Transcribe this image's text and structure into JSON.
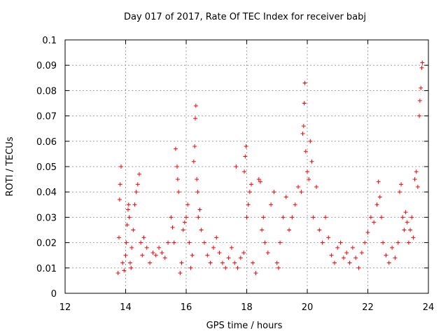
{
  "chart_data": {
    "type": "scatter",
    "title": "Day 017 of 2017, Rate Of TEC Index for receiver babj",
    "xlabel": "GPS time / hours",
    "ylabel": "ROTI / TECUs",
    "xlim": [
      12,
      24
    ],
    "ylim": [
      0,
      0.1
    ],
    "x_ticks": [
      "12",
      "14",
      "16",
      "18",
      "20",
      "22",
      "24"
    ],
    "y_ticks": [
      "0",
      "0.01",
      "0.02",
      "0.03",
      "0.04",
      "0.05",
      "0.06",
      "0.07",
      "0.08",
      "0.09",
      "0.1"
    ],
    "grid": true,
    "marker": "+",
    "color": "#ff0000",
    "points": [
      [
        13.75,
        0.008
      ],
      [
        13.78,
        0.022
      ],
      [
        13.8,
        0.037
      ],
      [
        13.82,
        0.043
      ],
      [
        13.85,
        0.05
      ],
      [
        13.9,
        0.012
      ],
      [
        13.95,
        0.009
      ],
      [
        14.0,
        0.015
      ],
      [
        14.02,
        0.02
      ],
      [
        14.05,
        0.027
      ],
      [
        14.08,
        0.033
      ],
      [
        14.1,
        0.035
      ],
      [
        14.12,
        0.03
      ],
      [
        14.15,
        0.012
      ],
      [
        14.18,
        0.01
      ],
      [
        14.2,
        0.018
      ],
      [
        14.25,
        0.025
      ],
      [
        14.3,
        0.035
      ],
      [
        14.35,
        0.04
      ],
      [
        14.4,
        0.043
      ],
      [
        14.45,
        0.047
      ],
      [
        14.5,
        0.02
      ],
      [
        14.55,
        0.015
      ],
      [
        14.6,
        0.022
      ],
      [
        14.7,
        0.018
      ],
      [
        14.8,
        0.012
      ],
      [
        14.9,
        0.016
      ],
      [
        15.0,
        0.015
      ],
      [
        15.1,
        0.018
      ],
      [
        15.2,
        0.016
      ],
      [
        15.3,
        0.014
      ],
      [
        15.4,
        0.02
      ],
      [
        15.5,
        0.03
      ],
      [
        15.55,
        0.026
      ],
      [
        15.6,
        0.02
      ],
      [
        15.65,
        0.057
      ],
      [
        15.7,
        0.05
      ],
      [
        15.72,
        0.045
      ],
      [
        15.75,
        0.04
      ],
      [
        15.8,
        0.008
      ],
      [
        15.85,
        0.012
      ],
      [
        15.9,
        0.025
      ],
      [
        15.95,
        0.028
      ],
      [
        16.0,
        0.03
      ],
      [
        16.05,
        0.035
      ],
      [
        16.1,
        0.02
      ],
      [
        16.15,
        0.01
      ],
      [
        16.2,
        0.015
      ],
      [
        16.25,
        0.052
      ],
      [
        16.28,
        0.058
      ],
      [
        16.3,
        0.069
      ],
      [
        16.32,
        0.074
      ],
      [
        16.35,
        0.045
      ],
      [
        16.38,
        0.04
      ],
      [
        16.4,
        0.03
      ],
      [
        16.45,
        0.033
      ],
      [
        16.5,
        0.025
      ],
      [
        16.6,
        0.02
      ],
      [
        16.7,
        0.015
      ],
      [
        16.8,
        0.012
      ],
      [
        16.9,
        0.018
      ],
      [
        17.0,
        0.022
      ],
      [
        17.1,
        0.016
      ],
      [
        17.2,
        0.012
      ],
      [
        17.3,
        0.01
      ],
      [
        17.4,
        0.014
      ],
      [
        17.5,
        0.018
      ],
      [
        17.6,
        0.012
      ],
      [
        17.65,
        0.05
      ],
      [
        17.7,
        0.01
      ],
      [
        17.8,
        0.014
      ],
      [
        17.9,
        0.016
      ],
      [
        17.92,
        0.048
      ],
      [
        17.95,
        0.054
      ],
      [
        17.98,
        0.058
      ],
      [
        18.0,
        0.03
      ],
      [
        18.05,
        0.035
      ],
      [
        18.1,
        0.04
      ],
      [
        18.15,
        0.043
      ],
      [
        18.2,
        0.012
      ],
      [
        18.3,
        0.008
      ],
      [
        18.4,
        0.045
      ],
      [
        18.45,
        0.044
      ],
      [
        18.5,
        0.025
      ],
      [
        18.55,
        0.03
      ],
      [
        18.6,
        0.02
      ],
      [
        18.7,
        0.016
      ],
      [
        18.8,
        0.035
      ],
      [
        18.9,
        0.04
      ],
      [
        19.0,
        0.012
      ],
      [
        19.05,
        0.01
      ],
      [
        19.1,
        0.02
      ],
      [
        19.2,
        0.03
      ],
      [
        19.3,
        0.038
      ],
      [
        19.4,
        0.025
      ],
      [
        19.5,
        0.03
      ],
      [
        19.6,
        0.035
      ],
      [
        19.7,
        0.042
      ],
      [
        19.8,
        0.04
      ],
      [
        19.85,
        0.063
      ],
      [
        19.88,
        0.066
      ],
      [
        19.9,
        0.075
      ],
      [
        19.92,
        0.083
      ],
      [
        19.95,
        0.056
      ],
      [
        20.0,
        0.048
      ],
      [
        20.05,
        0.045
      ],
      [
        20.1,
        0.06
      ],
      [
        20.15,
        0.052
      ],
      [
        20.2,
        0.03
      ],
      [
        20.3,
        0.042
      ],
      [
        20.4,
        0.025
      ],
      [
        20.5,
        0.02
      ],
      [
        20.6,
        0.03
      ],
      [
        20.7,
        0.022
      ],
      [
        20.8,
        0.015
      ],
      [
        20.9,
        0.012
      ],
      [
        21.0,
        0.018
      ],
      [
        21.1,
        0.02
      ],
      [
        21.2,
        0.014
      ],
      [
        21.3,
        0.016
      ],
      [
        21.4,
        0.012
      ],
      [
        21.5,
        0.018
      ],
      [
        21.6,
        0.014
      ],
      [
        21.7,
        0.01
      ],
      [
        21.8,
        0.016
      ],
      [
        21.9,
        0.02
      ],
      [
        22.0,
        0.024
      ],
      [
        22.1,
        0.03
      ],
      [
        22.2,
        0.028
      ],
      [
        22.3,
        0.035
      ],
      [
        22.35,
        0.044
      ],
      [
        22.4,
        0.038
      ],
      [
        22.45,
        0.03
      ],
      [
        22.5,
        0.02
      ],
      [
        22.6,
        0.015
      ],
      [
        22.7,
        0.012
      ],
      [
        22.8,
        0.018
      ],
      [
        22.9,
        0.014
      ],
      [
        23.0,
        0.02
      ],
      [
        23.05,
        0.04
      ],
      [
        23.1,
        0.043
      ],
      [
        23.15,
        0.03
      ],
      [
        23.2,
        0.025
      ],
      [
        23.25,
        0.032
      ],
      [
        23.3,
        0.028
      ],
      [
        23.35,
        0.02
      ],
      [
        23.4,
        0.025
      ],
      [
        23.45,
        0.03
      ],
      [
        23.5,
        0.022
      ],
      [
        23.55,
        0.045
      ],
      [
        23.6,
        0.048
      ],
      [
        23.65,
        0.042
      ],
      [
        23.7,
        0.07
      ],
      [
        23.72,
        0.076
      ],
      [
        23.75,
        0.081
      ],
      [
        23.78,
        0.089
      ],
      [
        23.8,
        0.091
      ]
    ]
  }
}
